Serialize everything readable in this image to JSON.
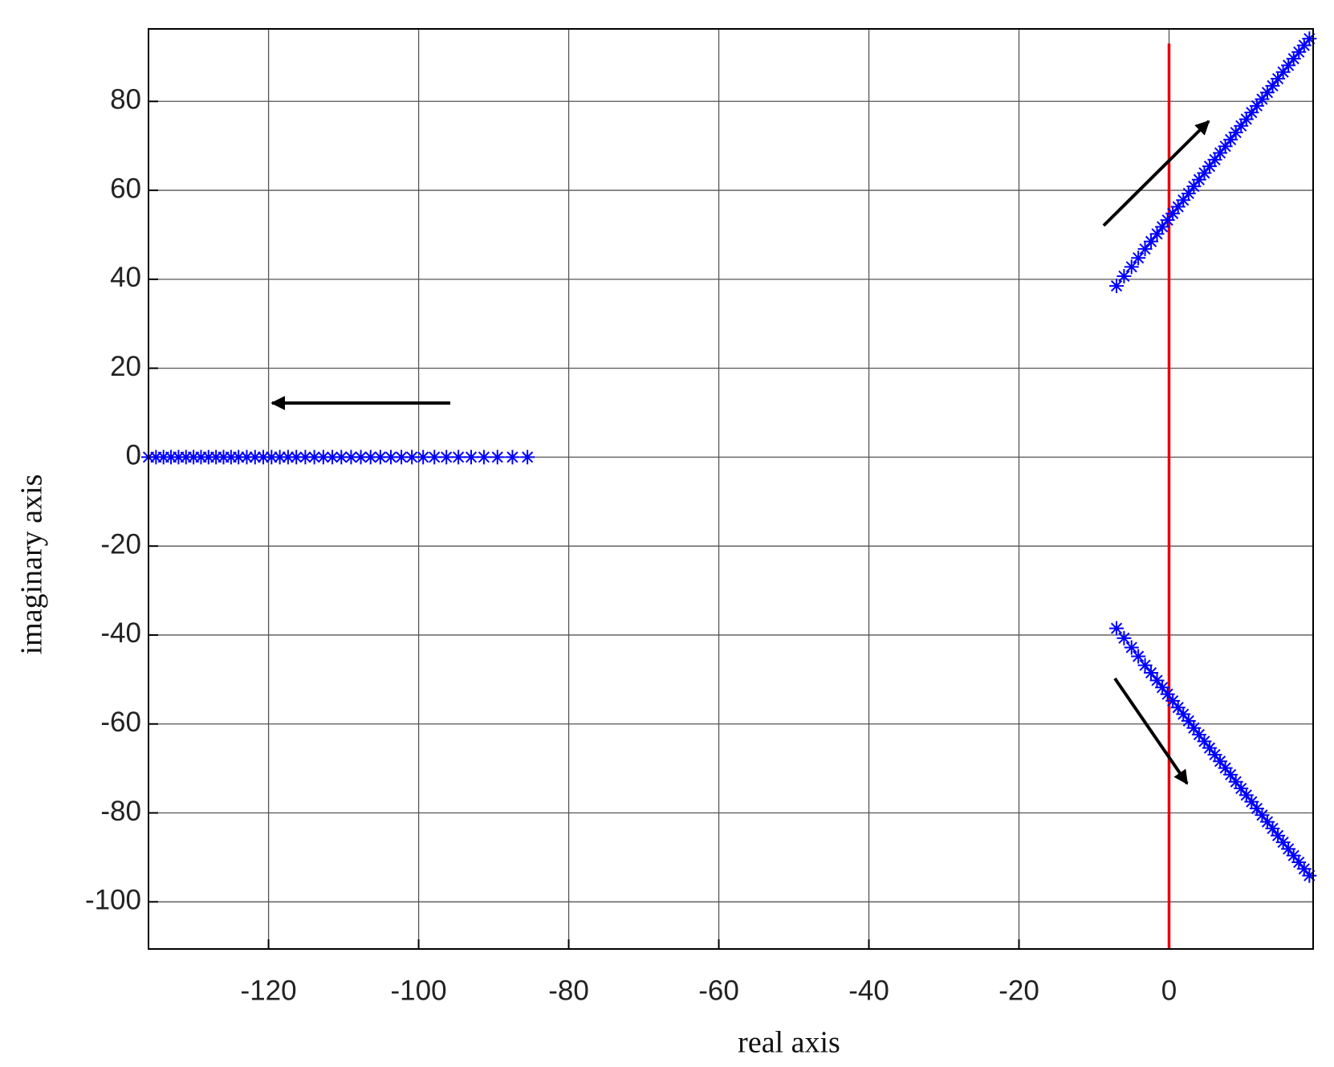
{
  "chart_data": {
    "type": "scatter",
    "x_label": "real axis",
    "y_label": "imaginary axis",
    "xlim": [
      -136,
      19.2
    ],
    "ylim": [
      -110.6,
      96.3
    ],
    "xticks": [
      -120,
      -100,
      -80,
      -60,
      -40,
      -20,
      0
    ],
    "yticks": [
      -100,
      -80,
      -60,
      -40,
      -20,
      0,
      20,
      40,
      60,
      80
    ],
    "grid": true,
    "marker": "asterisk",
    "reference_line": {
      "x": 0,
      "y": [
        -110.6,
        93
      ],
      "color": "#e8000b"
    },
    "series": [
      {
        "color": "#0000ff",
        "x": [
          -85.5,
          -87.5,
          -89.5,
          -91.3,
          -93,
          -94.7,
          -96.3,
          -97.9,
          -99.4,
          -100.9,
          -102.3,
          -103.7,
          -105.1,
          -106.4,
          -107.7,
          -109,
          -110.3,
          -111.5,
          -112.7,
          -113.9,
          -115.1,
          -116.3,
          -117.4,
          -118.5,
          -119.6,
          -120.7,
          -121.8,
          -122.9,
          -124,
          -125,
          -126,
          -127,
          -128,
          -129,
          -130,
          -131,
          -132,
          -133,
          -134,
          -135,
          -136
        ],
        "values": [
          0,
          0,
          0,
          0,
          0,
          0,
          0,
          0,
          0,
          0,
          0,
          0,
          0,
          0,
          0,
          0,
          0,
          0,
          0,
          0,
          0,
          0,
          0,
          0,
          0,
          0,
          0,
          0,
          0,
          0,
          0,
          0,
          0,
          0,
          0,
          0,
          0,
          0,
          0,
          0,
          0
        ]
      },
      {
        "color": "#0000ff",
        "x": [
          -7,
          -6,
          -5,
          -4.1,
          -3.2,
          -2.4,
          -1.6,
          -0.9,
          -0.2,
          0.5,
          1.2,
          1.9,
          2.6,
          3.3,
          4,
          4.7,
          5.4,
          6.1,
          6.8,
          7.5,
          8.2,
          8.9,
          9.6,
          10.3,
          11,
          11.7,
          12.4,
          13.1,
          13.8,
          14.5,
          15.2,
          15.9,
          16.6,
          17.3,
          18,
          18.7
        ],
        "values": [
          38.5,
          40.7,
          42.8,
          44.8,
          46.8,
          48.5,
          50.2,
          51.8,
          53.3,
          54.8,
          56.3,
          57.8,
          59.3,
          60.9,
          62.4,
          63.9,
          65.4,
          66.9,
          68.4,
          69.9,
          71.4,
          73.0,
          74.5,
          76.0,
          77.5,
          79.0,
          80.5,
          82.0,
          83.5,
          85.1,
          86.6,
          88.1,
          89.6,
          91.1,
          92.6,
          94.1
        ]
      },
      {
        "color": "#0000ff",
        "x": [
          -7,
          -6,
          -5,
          -4.1,
          -3.2,
          -2.4,
          -1.6,
          -0.9,
          -0.2,
          0.5,
          1.2,
          1.9,
          2.6,
          3.3,
          4,
          4.7,
          5.4,
          6.1,
          6.8,
          7.5,
          8.2,
          8.9,
          9.6,
          10.3,
          11,
          11.7,
          12.4,
          13.1,
          13.8,
          14.5,
          15.2,
          15.9,
          16.6,
          17.3,
          18,
          18.7
        ],
        "values": [
          -38.5,
          -40.7,
          -42.8,
          -44.8,
          -46.8,
          -48.5,
          -50.2,
          -51.8,
          -53.3,
          -54.8,
          -56.3,
          -57.8,
          -59.3,
          -60.9,
          -62.4,
          -63.9,
          -65.4,
          -66.9,
          -68.4,
          -69.9,
          -71.4,
          -73.0,
          -74.5,
          -76.0,
          -77.5,
          -79.0,
          -80.5,
          -82.0,
          -83.5,
          -85.1,
          -86.6,
          -88.1,
          -89.6,
          -91.1,
          -92.6,
          -94.1
        ]
      }
    ]
  }
}
